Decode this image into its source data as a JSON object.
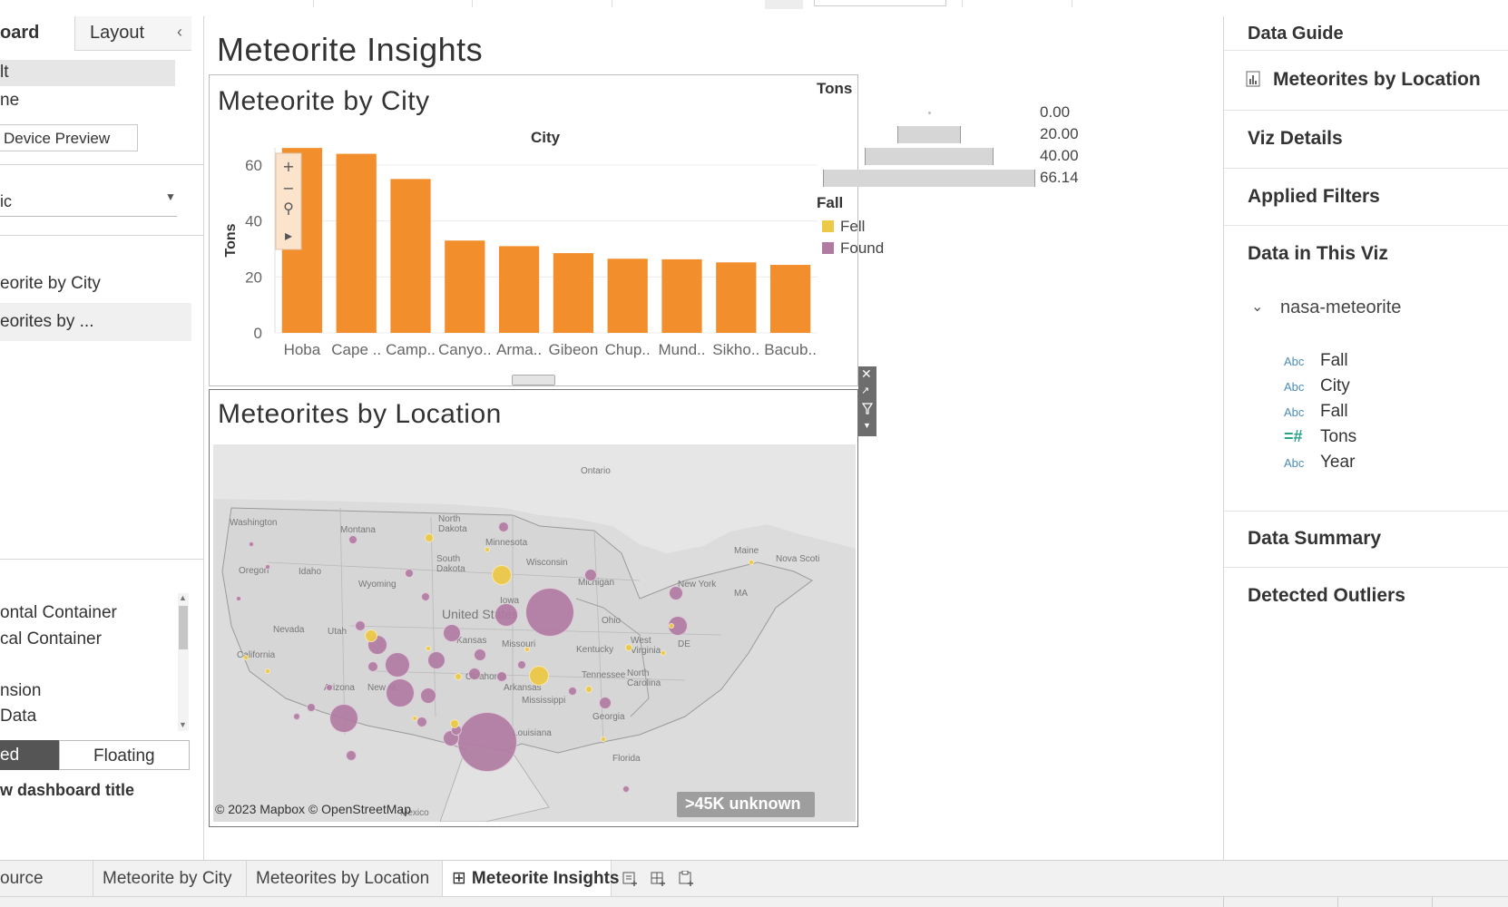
{
  "left_panel": {
    "tab_dashboard": "oard",
    "tab_layout": "Layout",
    "collapse_glyph": "‹",
    "size_option_1": "lt",
    "size_option_2": "ne",
    "device_preview_label": "Device Preview",
    "size_select_value": "ic",
    "sheets": [
      "eorite by City",
      "eorites by ..."
    ],
    "objects": [
      "ontal Container",
      "cal Container",
      "nsion",
      "Data"
    ],
    "tiled_label": "ed",
    "floating_label": "Floating",
    "show_title_label": "w dashboard title"
  },
  "dashboard": {
    "title": "Meteorite Insights",
    "bar_sheet_title": "Meteorite by City",
    "map_sheet_title": "Meteorites by Location",
    "map_attribution": "© 2023 Mapbox © OpenStreetMap",
    "map_unknown": ">45K unknown",
    "map_labels": [
      "Ontario",
      "Washington",
      "Montana",
      "North Dakota",
      "Minnesota",
      "South Dakota",
      "Wisconsin",
      "Michigan",
      "Maine",
      "Nova Scoti",
      "Oregon",
      "Idaho",
      "Wyoming",
      "Iowa",
      "United States",
      "Nevada",
      "Utah",
      "Ohio",
      "New York",
      "Missouri",
      "Kentucky",
      "California",
      "Arizona",
      "New Mexico",
      "Oklahoma",
      "Tennessee",
      "North Carolina",
      "Arkansas",
      "Mississippi",
      "Georgia",
      "Louisiana",
      "Florida",
      "Mexico",
      "DE",
      "MA",
      "West Virginia",
      "Kansas"
    ]
  },
  "chart_data": {
    "type": "bar",
    "title": "City",
    "xlabel": "",
    "ylabel": "Tons",
    "ylim": [
      0,
      66.14
    ],
    "yticks": [
      0,
      20,
      40,
      60
    ],
    "categories": [
      "Hoba",
      "Cape ..",
      "Camp..",
      "Canyo..",
      "Arma..",
      "Gibeon",
      "Chup..",
      "Mund..",
      "Sikho..",
      "Bacub.."
    ],
    "values": [
      66.1,
      64.0,
      55.0,
      33.0,
      31.0,
      28.5,
      26.5,
      26.3,
      25.2,
      24.3
    ],
    "bar_color": "#f28e2b",
    "grid": true
  },
  "legends": {
    "size_title": "Tons",
    "size_items": [
      "0.00",
      "20.00",
      "40.00",
      "66.14"
    ],
    "size_widths": [
      0,
      20,
      40,
      66.14
    ],
    "color_title": "Fall",
    "color_items": [
      {
        "label": "Fell",
        "color": "#edc948"
      },
      {
        "label": "Found",
        "color": "#b07aa1"
      }
    ]
  },
  "right_panel": {
    "title": "Data Guide",
    "current_sheet": "Meteorites by Location",
    "sections": [
      "Viz Details",
      "Applied Filters",
      "Data in This Viz"
    ],
    "datasource": "nasa-meteorite",
    "fields": [
      {
        "type": "Abc",
        "name": "Fall"
      },
      {
        "type": "Abc",
        "name": "City"
      },
      {
        "type": "Abc",
        "name": "Fall"
      },
      {
        "type": "=#",
        "name": "Tons"
      },
      {
        "type": "Abc",
        "name": "Year"
      }
    ],
    "summary": "Data Summary",
    "outliers": "Detected Outliers"
  },
  "tabs": {
    "datasource": "ource",
    "sheet1": "Meteorite by City",
    "sheet2": "Meteorites by Location",
    "dashboard": "Meteorite Insights",
    "dashboard_glyph": "⊞",
    "new_icons": [
      "new-worksheet-icon",
      "new-dashboard-icon",
      "new-story-icon"
    ]
  }
}
